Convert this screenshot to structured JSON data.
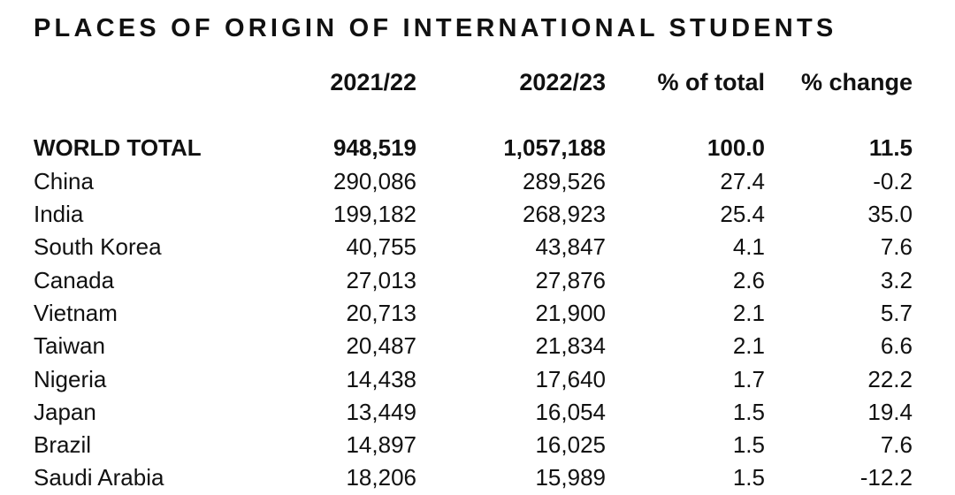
{
  "title": "PLACES OF ORIGIN OF INTERNATIONAL STUDENTS",
  "columns": [
    "",
    "2021/22",
    "2022/23",
    "% of total",
    "% change"
  ],
  "rows": [
    {
      "country": "WORLD TOTAL",
      "y2021_22": "948,519",
      "y2022_23": "1,057,188",
      "pct_total": "100.0",
      "pct_change": "11.5"
    },
    {
      "country": "China",
      "y2021_22": "290,086",
      "y2022_23": "289,526",
      "pct_total": "27.4",
      "pct_change": "-0.2"
    },
    {
      "country": "India",
      "y2021_22": "199,182",
      "y2022_23": "268,923",
      "pct_total": "25.4",
      "pct_change": "35.0"
    },
    {
      "country": "South Korea",
      "y2021_22": "40,755",
      "y2022_23": "43,847",
      "pct_total": "4.1",
      "pct_change": "7.6"
    },
    {
      "country": "Canada",
      "y2021_22": "27,013",
      "y2022_23": "27,876",
      "pct_total": "2.6",
      "pct_change": "3.2"
    },
    {
      "country": "Vietnam",
      "y2021_22": "20,713",
      "y2022_23": "21,900",
      "pct_total": "2.1",
      "pct_change": "5.7"
    },
    {
      "country": "Taiwan",
      "y2021_22": "20,487",
      "y2022_23": "21,834",
      "pct_total": "2.1",
      "pct_change": "6.6"
    },
    {
      "country": "Nigeria",
      "y2021_22": "14,438",
      "y2022_23": "17,640",
      "pct_total": "1.7",
      "pct_change": "22.2"
    },
    {
      "country": "Japan",
      "y2021_22": "13,449",
      "y2022_23": "16,054",
      "pct_total": "1.5",
      "pct_change": "19.4"
    },
    {
      "country": "Brazil",
      "y2021_22": "14,897",
      "y2022_23": "16,025",
      "pct_total": "1.5",
      "pct_change": "7.6"
    },
    {
      "country": "Saudi Arabia",
      "y2021_22": "18,206",
      "y2022_23": "15,989",
      "pct_total": "1.5",
      "pct_change": "-12.2"
    }
  ]
}
